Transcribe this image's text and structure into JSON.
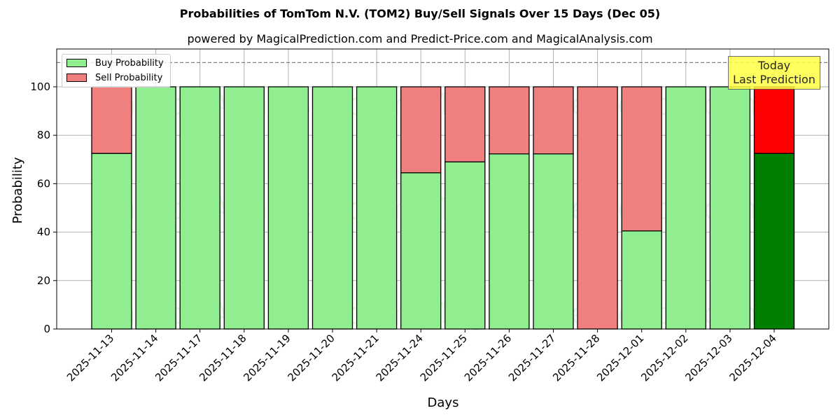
{
  "header": {
    "title": "Probabilities of TomTom N.V. (TOM2) Buy/Sell Signals Over 15 Days (Dec 05)",
    "subtitle": "powered by MagicalPrediction.com and Predict-Price.com and MagicalAnalysis.com"
  },
  "legend": {
    "buy_label": "Buy Probability",
    "sell_label": "Sell Probability"
  },
  "annotation": {
    "line1": "Today",
    "line2": "Last Prediction"
  },
  "watermarks": [
    "MagicalAnalysis.com",
    "MagicalPrediction.com"
  ],
  "colors": {
    "buy": "#90ee90",
    "sell": "#f08080",
    "today_buy": "#008000",
    "today_sell": "#ff0000",
    "annotation_bg": "#ffff44"
  },
  "chart_data": {
    "type": "bar",
    "stacked": true,
    "title": "Probabilities of TomTom N.V. (TOM2) Buy/Sell Signals Over 15 Days (Dec 05)",
    "subtitle": "powered by MagicalPrediction.com and Predict-Price.com and MagicalAnalysis.com",
    "xlabel": "Days",
    "ylabel": "Probability",
    "ylim": [
      0,
      115
    ],
    "yticks": [
      0,
      20,
      40,
      60,
      80,
      100
    ],
    "reference_line": 110,
    "grid": true,
    "legend_position": "upper left",
    "categories": [
      "2025-11-13",
      "2025-11-14",
      "2025-11-17",
      "2025-11-18",
      "2025-11-19",
      "2025-11-20",
      "2025-11-21",
      "2025-11-24",
      "2025-11-25",
      "2025-11-26",
      "2025-11-27",
      "2025-11-28",
      "2025-12-01",
      "2025-12-02",
      "2025-12-03",
      "2025-12-04"
    ],
    "series": [
      {
        "name": "Buy Probability",
        "values": [
          72.5,
          100,
          100,
          100,
          100,
          100,
          100,
          64.5,
          69,
          72.3,
          72.3,
          0,
          40.5,
          100,
          100,
          72.5
        ]
      },
      {
        "name": "Sell Probability",
        "values": [
          27.5,
          0,
          0,
          0,
          0,
          0,
          0,
          35.5,
          31,
          27.7,
          27.7,
          100,
          59.5,
          0,
          0,
          27.5
        ]
      }
    ],
    "highlight_last": true
  }
}
